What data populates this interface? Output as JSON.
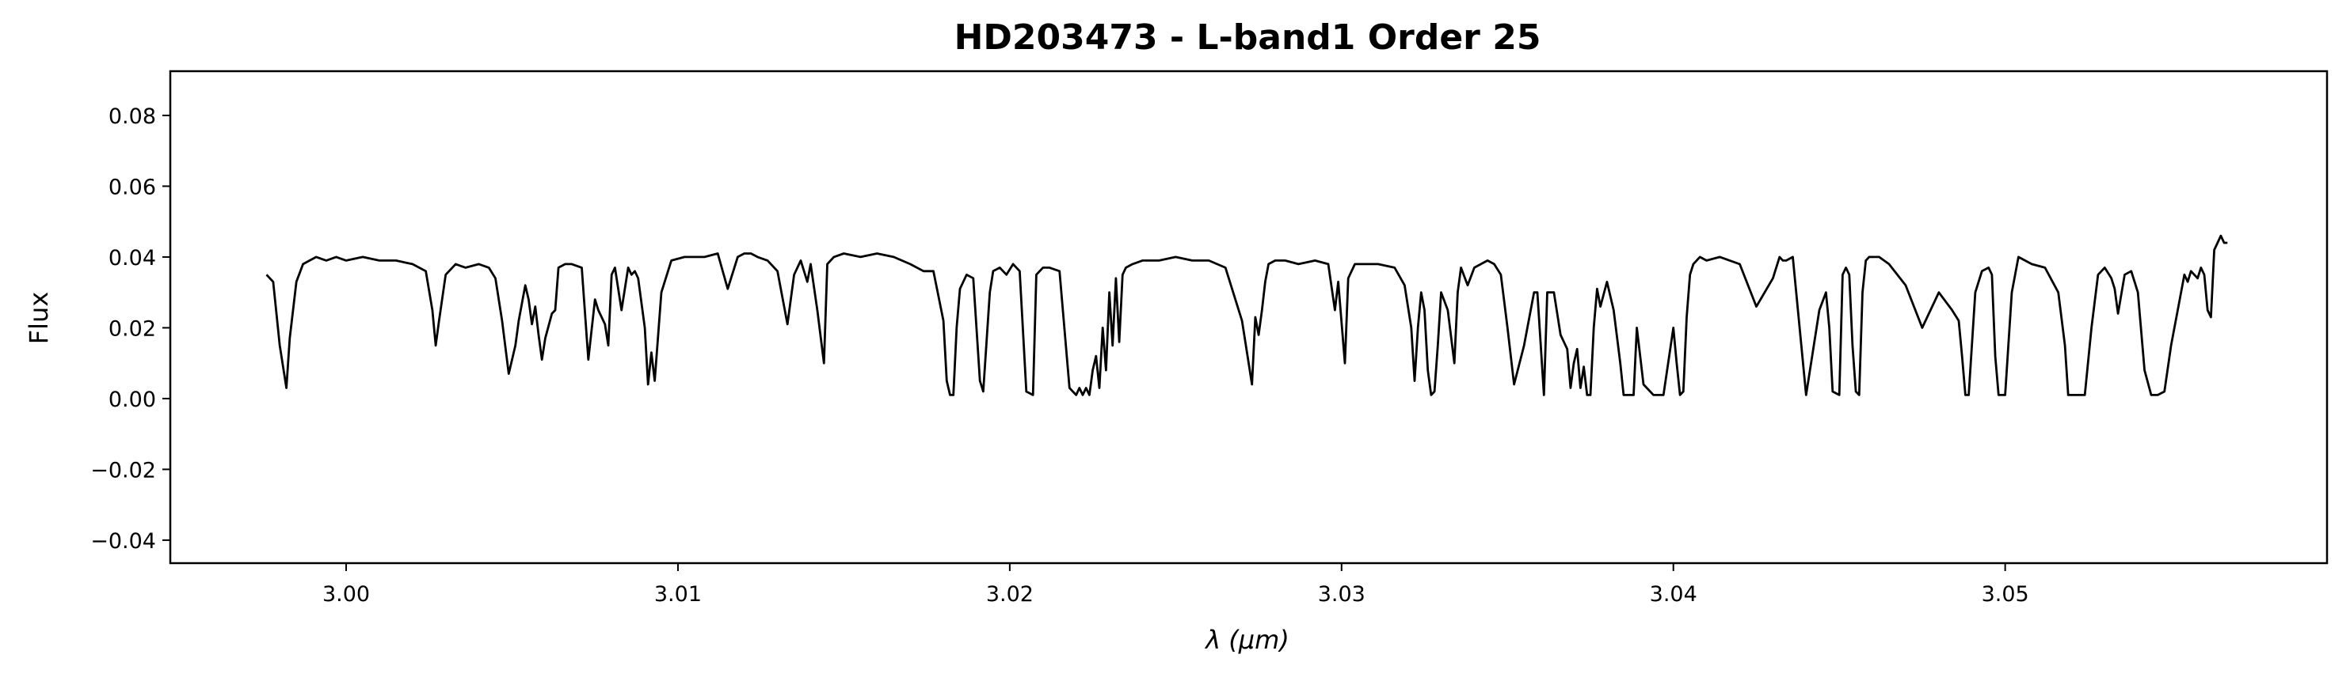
{
  "chart_data": {
    "type": "line",
    "title": "HD203473 - L-band1 Order 25",
    "xlabel": "λ (μm)",
    "ylabel": "Flux",
    "xlim": [
      2.9947,
      3.0597
    ],
    "ylim": [
      -0.0465,
      0.0925
    ],
    "x_ticks": [
      3.0,
      3.01,
      3.02,
      3.03,
      3.04,
      3.05
    ],
    "x_tick_labels": [
      "3.00",
      "3.01",
      "3.02",
      "3.03",
      "3.04",
      "3.05"
    ],
    "y_ticks": [
      -0.04,
      -0.02,
      0.0,
      0.02,
      0.04,
      0.06,
      0.08
    ],
    "y_tick_labels": [
      "−0.04",
      "−0.02",
      "0.00",
      "0.02",
      "0.04",
      "0.06",
      "0.08"
    ],
    "grid": false,
    "line_color": "#000000",
    "series": [
      {
        "x": [
          2.9976,
          2.9978,
          2.998,
          2.9982,
          2.9983,
          2.9985,
          2.9987,
          2.9989,
          2.9991,
          2.9994,
          2.9997,
          3.0,
          3.0005,
          3.001,
          3.0015,
          3.002,
          3.0024,
          3.0026,
          3.0027,
          3.0028,
          3.003,
          3.0033,
          3.0036,
          3.004,
          3.0043,
          3.0045,
          3.0047,
          3.0049,
          3.0051,
          3.0052,
          3.0054,
          3.0055,
          3.0056,
          3.0057,
          3.0058,
          3.0059,
          3.006,
          3.0062,
          3.0063,
          3.0064,
          3.0066,
          3.0068,
          3.0071,
          3.0073,
          3.0075,
          3.0076,
          3.0078,
          3.0079,
          3.008,
          3.0081,
          3.0083,
          3.0085,
          3.0086,
          3.0087,
          3.0088,
          3.009,
          3.0091,
          3.0092,
          3.0093,
          3.0095,
          3.0098,
          3.0102,
          3.0108,
          3.0112,
          3.0115,
          3.0118,
          3.012,
          3.0122,
          3.0124,
          3.0127,
          3.013,
          3.0133,
          3.0135,
          3.0137,
          3.0139,
          3.014,
          3.0142,
          3.0144,
          3.0145,
          3.0147,
          3.015,
          3.0155,
          3.016,
          3.0165,
          3.017,
          3.0174,
          3.0177,
          3.018,
          3.0181,
          3.0182,
          3.0183,
          3.0184,
          3.0185,
          3.0187,
          3.0189,
          3.0191,
          3.0192,
          3.0194,
          3.0195,
          3.0197,
          3.0199,
          3.0201,
          3.0203,
          3.0205,
          3.0207,
          3.0208,
          3.021,
          3.0212,
          3.0215,
          3.0218,
          3.022,
          3.0221,
          3.0222,
          3.0223,
          3.0224,
          3.0225,
          3.0226,
          3.0227,
          3.0228,
          3.0229,
          3.023,
          3.0231,
          3.0232,
          3.0233,
          3.0234,
          3.0235,
          3.0237,
          3.024,
          3.0245,
          3.025,
          3.0255,
          3.026,
          3.0265,
          3.027,
          3.0273,
          3.0274,
          3.0275,
          3.0276,
          3.0277,
          3.0278,
          3.028,
          3.0283,
          3.0287,
          3.0292,
          3.0296,
          3.0298,
          3.0299,
          3.0301,
          3.0302,
          3.0304,
          3.0307,
          3.0311,
          3.0316,
          3.0319,
          3.0321,
          3.0322,
          3.0323,
          3.0324,
          3.0325,
          3.0326,
          3.0327,
          3.0328,
          3.0329,
          3.033,
          3.0332,
          3.0334,
          3.0335,
          3.0336,
          3.0338,
          3.034,
          3.0342,
          3.0344,
          3.0346,
          3.0348,
          3.035,
          3.0352,
          3.0355,
          3.0358,
          3.0359,
          3.0361,
          3.0362,
          3.0364,
          3.0366,
          3.0368,
          3.0369,
          3.037,
          3.0371,
          3.0372,
          3.0373,
          3.0374,
          3.0375,
          3.0376,
          3.0377,
          3.0378,
          3.038,
          3.0382,
          3.0384,
          3.0385,
          3.0387,
          3.0388,
          3.0389,
          3.0391,
          3.0394,
          3.0397,
          3.04,
          3.0401,
          3.0402,
          3.0403,
          3.0404,
          3.0405,
          3.0406,
          3.0408,
          3.041,
          3.0414,
          3.042,
          3.0425,
          3.043,
          3.0432,
          3.0433,
          3.0434,
          3.0436,
          3.044,
          3.0444,
          3.0446,
          3.0447,
          3.0448,
          3.045,
          3.0451,
          3.0452,
          3.0453,
          3.0454,
          3.0455,
          3.0456,
          3.0457,
          3.0458,
          3.0459,
          3.046,
          3.0462,
          3.0465,
          3.047,
          3.0475,
          3.048,
          3.0484,
          3.0486,
          3.0487,
          3.0488,
          3.0489,
          3.0491,
          3.0493,
          3.0495,
          3.0496,
          3.0497,
          3.0498,
          3.05,
          3.0502,
          3.0504,
          3.0506,
          3.0508,
          3.0512,
          3.0516,
          3.0518,
          3.0519,
          3.052,
          3.0522,
          3.0524,
          3.0526,
          3.0528,
          3.053,
          3.0532,
          3.0533,
          3.0534,
          3.0536,
          3.0538,
          3.054,
          3.0542,
          3.0544,
          3.0546,
          3.0548,
          3.055,
          3.0552,
          3.0554,
          3.0555,
          3.0556,
          3.0558,
          3.0559,
          3.056,
          3.0561,
          3.0562,
          3.0563,
          3.0564,
          3.0565,
          3.0566,
          3.0567
        ],
        "values": [
          0.035,
          0.033,
          0.015,
          0.003,
          0.017,
          0.033,
          0.038,
          0.039,
          0.04,
          0.039,
          0.04,
          0.039,
          0.04,
          0.039,
          0.039,
          0.038,
          0.036,
          0.025,
          0.015,
          0.022,
          0.035,
          0.038,
          0.037,
          0.038,
          0.037,
          0.034,
          0.022,
          0.007,
          0.015,
          0.022,
          0.032,
          0.028,
          0.021,
          0.026,
          0.018,
          0.011,
          0.017,
          0.024,
          0.025,
          0.037,
          0.038,
          0.038,
          0.037,
          0.011,
          0.028,
          0.025,
          0.021,
          0.015,
          0.035,
          0.037,
          0.025,
          0.037,
          0.035,
          0.036,
          0.034,
          0.02,
          0.004,
          0.013,
          0.005,
          0.03,
          0.039,
          0.04,
          0.04,
          0.041,
          0.031,
          0.04,
          0.041,
          0.041,
          0.04,
          0.039,
          0.036,
          0.021,
          0.035,
          0.039,
          0.033,
          0.038,
          0.025,
          0.01,
          0.038,
          0.04,
          0.041,
          0.04,
          0.041,
          0.04,
          0.038,
          0.036,
          0.036,
          0.022,
          0.005,
          0.001,
          0.001,
          0.02,
          0.031,
          0.035,
          0.034,
          0.005,
          0.002,
          0.03,
          0.036,
          0.037,
          0.035,
          0.038,
          0.036,
          0.002,
          0.001,
          0.035,
          0.037,
          0.037,
          0.036,
          0.003,
          0.001,
          0.003,
          0.001,
          0.003,
          0.001,
          0.008,
          0.012,
          0.003,
          0.02,
          0.008,
          0.03,
          0.015,
          0.034,
          0.016,
          0.035,
          0.037,
          0.038,
          0.039,
          0.039,
          0.04,
          0.039,
          0.039,
          0.037,
          0.022,
          0.004,
          0.023,
          0.018,
          0.025,
          0.033,
          0.038,
          0.039,
          0.039,
          0.038,
          0.039,
          0.038,
          0.025,
          0.033,
          0.01,
          0.034,
          0.038,
          0.038,
          0.038,
          0.037,
          0.032,
          0.02,
          0.005,
          0.02,
          0.03,
          0.025,
          0.008,
          0.001,
          0.002,
          0.015,
          0.03,
          0.025,
          0.01,
          0.03,
          0.037,
          0.032,
          0.037,
          0.038,
          0.039,
          0.038,
          0.035,
          0.02,
          0.004,
          0.015,
          0.03,
          0.03,
          0.001,
          0.03,
          0.03,
          0.018,
          0.014,
          0.003,
          0.01,
          0.014,
          0.003,
          0.009,
          0.001,
          0.001,
          0.02,
          0.031,
          0.026,
          0.033,
          0.025,
          0.01,
          0.001,
          0.001,
          0.001,
          0.02,
          0.004,
          0.001,
          0.001,
          0.02,
          0.01,
          0.001,
          0.002,
          0.023,
          0.035,
          0.038,
          0.04,
          0.039,
          0.04,
          0.038,
          0.026,
          0.034,
          0.04,
          0.039,
          0.039,
          0.04,
          0.001,
          0.025,
          0.03,
          0.02,
          0.002,
          0.001,
          0.035,
          0.037,
          0.035,
          0.015,
          0.002,
          0.001,
          0.03,
          0.039,
          0.04,
          0.04,
          0.04,
          0.038,
          0.032,
          0.02,
          0.03,
          0.025,
          0.022,
          0.012,
          0.001,
          0.001,
          0.03,
          0.036,
          0.037,
          0.035,
          0.012,
          0.001,
          0.001,
          0.03,
          0.04,
          0.039,
          0.038,
          0.037,
          0.03,
          0.015,
          0.001,
          0.001,
          0.001,
          0.001,
          0.02,
          0.035,
          0.037,
          0.034,
          0.031,
          0.024,
          0.035,
          0.036,
          0.03,
          0.008,
          0.001,
          0.001,
          0.002,
          0.015,
          0.025,
          0.035,
          0.033,
          0.036,
          0.034,
          0.037,
          0.035,
          0.025,
          0.023,
          0.042,
          0.044,
          0.046,
          0.044,
          0.044
        ]
      }
    ]
  }
}
